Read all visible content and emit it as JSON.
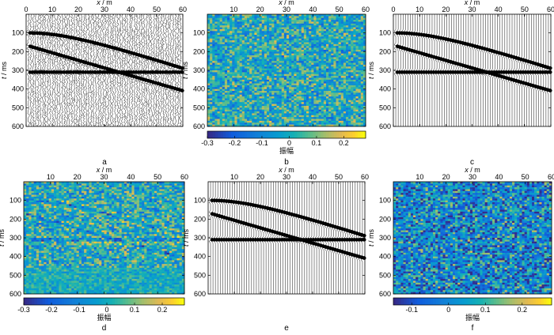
{
  "figure": {
    "x_axis_label": "x / m",
    "y_axis_label_italic": "t",
    "y_axis_label_unit": " / ms",
    "colorbar_label": "振幅"
  },
  "chart_data": [
    {
      "id": "a",
      "type": "wiggle",
      "caption": "a",
      "xlabel": "x / m",
      "ylabel": "t / ms",
      "xlim": [
        0,
        60
      ],
      "ylim": [
        600,
        0
      ],
      "xticks": [
        "0",
        "10",
        "20",
        "30",
        "40",
        "50",
        "60"
      ],
      "yticks": [
        "100",
        "200",
        "300",
        "400",
        "500",
        "600"
      ],
      "noise": true,
      "events": [
        {
          "name": "hyperbola",
          "t0": 100,
          "t_end": 290
        },
        {
          "name": "linear",
          "t0": 170,
          "t_end": 410
        },
        {
          "name": "flat",
          "t0": 310,
          "t_end": 310
        }
      ]
    },
    {
      "id": "b",
      "type": "heatmap",
      "caption": "b",
      "xlabel": "x / m",
      "ylabel": "t / ms",
      "xlim": [
        0,
        60
      ],
      "ylim": [
        600,
        0
      ],
      "xticks": [
        "10",
        "20",
        "30",
        "40",
        "50",
        "60"
      ],
      "yticks": [
        "100",
        "200",
        "300",
        "400",
        "500",
        "600"
      ],
      "colorbar": {
        "label": "振幅",
        "ticks": [
          "-0.3",
          "-0.2",
          "-0.1",
          "0",
          "0.1",
          "0.2"
        ],
        "range": [
          -0.3,
          0.28
        ]
      },
      "content": "random noise"
    },
    {
      "id": "c",
      "type": "wiggle",
      "caption": "c",
      "xlabel": "x / m",
      "ylabel": "t / ms",
      "xlim": [
        0,
        60
      ],
      "ylim": [
        600,
        0
      ],
      "xticks": [
        "0",
        "10",
        "20",
        "30",
        "40",
        "50",
        "60"
      ],
      "yticks": [
        "100",
        "200",
        "300",
        "400",
        "500",
        "600"
      ],
      "noise": false,
      "events": [
        {
          "name": "hyperbola",
          "t0": 100,
          "t_end": 290
        },
        {
          "name": "linear",
          "t0": 170,
          "t_end": 410
        },
        {
          "name": "flat",
          "t0": 310,
          "t_end": 310
        }
      ]
    },
    {
      "id": "d",
      "type": "heatmap",
      "caption": "d",
      "xlabel": "x / m",
      "ylabel": "t / ms",
      "xlim": [
        0,
        60
      ],
      "ylim": [
        600,
        0
      ],
      "xticks": [
        "10",
        "20",
        "30",
        "40",
        "50",
        "60"
      ],
      "yticks": [
        "100",
        "200",
        "300",
        "400",
        "500",
        "600"
      ],
      "colorbar": {
        "label": "振幅",
        "ticks": [
          "-0.3",
          "-0.2",
          "-0.1",
          "0",
          "0.1",
          "0.2"
        ],
        "range": [
          -0.3,
          0.28
        ]
      },
      "content": "residual noise with signal leakage"
    },
    {
      "id": "e",
      "type": "wiggle",
      "caption": "e",
      "xlabel": "x / m",
      "ylabel": "t / ms",
      "xlim": [
        0,
        60
      ],
      "ylim": [
        600,
        0
      ],
      "xticks": [
        "10",
        "20",
        "30",
        "40",
        "50",
        "60"
      ],
      "yticks": [
        "100",
        "200",
        "300",
        "400",
        "500",
        "600"
      ],
      "noise": false,
      "events": [
        {
          "name": "hyperbola",
          "t0": 100,
          "t_end": 290
        },
        {
          "name": "linear",
          "t0": 170,
          "t_end": 410
        },
        {
          "name": "flat",
          "t0": 310,
          "t_end": 310
        }
      ]
    },
    {
      "id": "f",
      "type": "heatmap",
      "caption": "f",
      "xlabel": "x / m",
      "ylabel": "t / ms",
      "xlim": [
        0,
        60
      ],
      "ylim": [
        600,
        0
      ],
      "xticks": [
        "10",
        "20",
        "30",
        "40",
        "50",
        "60"
      ],
      "yticks": [
        "100",
        "200",
        "300",
        "400",
        "500",
        "600"
      ],
      "colorbar": {
        "label": "振幅",
        "ticks": [
          "-0.1",
          "0",
          "0.1",
          "0.2"
        ],
        "range": [
          -0.15,
          0.28
        ]
      },
      "content": "random noise"
    }
  ]
}
